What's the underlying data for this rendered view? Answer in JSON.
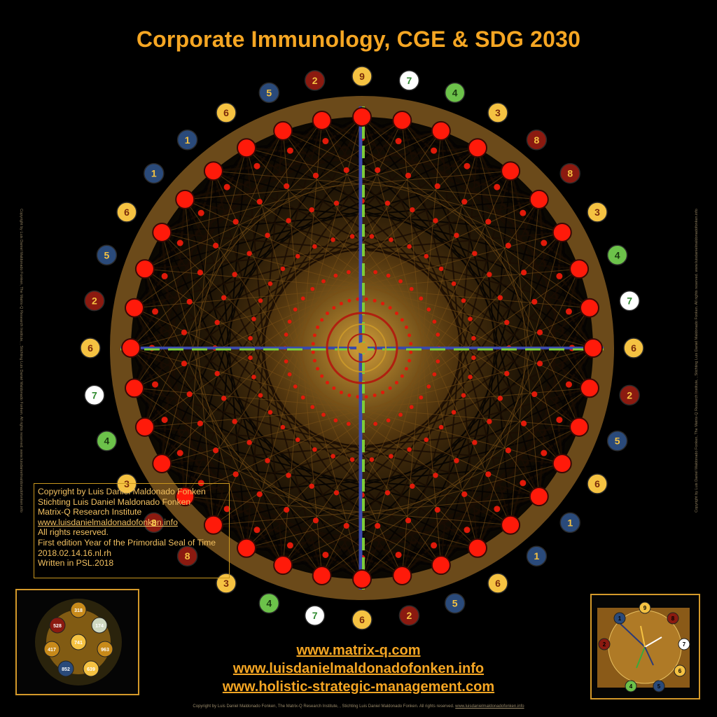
{
  "title": "Corporate Immunology, CGE & SDG 2030",
  "copyright_box": {
    "lines": [
      "Copyright by Luis Daniel Maldonado Fonken",
      "Stichting Luis Daniel Maldonado Fonken",
      "Matrix-Q Research Institute",
      "www.luisdanielmaldonadofonken.info",
      "All rights reserved.",
      "First edition Year of the Primordial Seal of Time",
      "2018.02.14.16.nl.rh",
      "Written in PSL.2018"
    ]
  },
  "links": [
    "www.matrix-q.com",
    "www.luisdanielmaldonadofonken.info",
    "www.holistic-strategic-management.com"
  ],
  "footer": {
    "text": "Copyright by Luis Daniel Maldonado Fonken, The Matrix-Q Research Institute, , Stichting Luis Daniel Maldonado Fonken. All rights reserved. ",
    "link": "www.luisdanielmaldonadofonken.info"
  },
  "side_text": {
    "left": "Copyright by Luis Daniel Maldonado Fonken, The Matrix-Q Research Institute, , Stichting Luis Daniel Maldonado Fonken. All rights reserved. www.luisdanielmaldonadofonken.info",
    "right": "Copyright by Luis Daniel Maldonado Fonken, The Matrix-Q Research Institute, , Stichting Luis Daniel Maldonado Fonken. All rights reserved. www.luisdanielmaldonadofonken.info"
  },
  "outer_ring_badges": [
    {
      "label": "9",
      "fill": "#f5c242",
      "text": "#7a2a0a"
    },
    {
      "label": "7",
      "fill": "#ffffff",
      "text": "#2f8a2f"
    },
    {
      "label": "4",
      "fill": "#6cc24a",
      "text": "#1a3a10"
    },
    {
      "label": "3",
      "fill": "#f5c242",
      "text": "#7a2a0a"
    },
    {
      "label": "8",
      "fill": "#8b1a10",
      "text": "#f5c242"
    },
    {
      "label": "8",
      "fill": "#8b1a10",
      "text": "#f5c242"
    },
    {
      "label": "3",
      "fill": "#f5c242",
      "text": "#7a2a0a"
    },
    {
      "label": "4",
      "fill": "#6cc24a",
      "text": "#1a3a10"
    },
    {
      "label": "7",
      "fill": "#ffffff",
      "text": "#2f8a2f"
    },
    {
      "label": "6",
      "fill": "#f5c242",
      "text": "#7a2a0a"
    },
    {
      "label": "2",
      "fill": "#8b1a10",
      "text": "#f5c242"
    },
    {
      "label": "5",
      "fill": "#2a4a7a",
      "text": "#f5c242"
    },
    {
      "label": "6",
      "fill": "#f5c242",
      "text": "#7a2a0a"
    },
    {
      "label": "1",
      "fill": "#2a4a7a",
      "text": "#f5c242"
    },
    {
      "label": "1",
      "fill": "#2a4a7a",
      "text": "#f5c242"
    },
    {
      "label": "6",
      "fill": "#f5c242",
      "text": "#7a2a0a"
    },
    {
      "label": "5",
      "fill": "#2a4a7a",
      "text": "#f5c242"
    },
    {
      "label": "2",
      "fill": "#8b1a10",
      "text": "#f5c242"
    },
    {
      "label": "6",
      "fill": "#f5c242",
      "text": "#7a2a0a"
    },
    {
      "label": "7",
      "fill": "#ffffff",
      "text": "#2f8a2f"
    },
    {
      "label": "4",
      "fill": "#6cc24a",
      "text": "#1a3a10"
    },
    {
      "label": "3",
      "fill": "#f5c242",
      "text": "#7a2a0a"
    },
    {
      "label": "8",
      "fill": "#8b1a10",
      "text": "#f5c242"
    },
    {
      "label": "8",
      "fill": "#8b1a10",
      "text": "#f5c242"
    },
    {
      "label": "3",
      "fill": "#f5c242",
      "text": "#7a2a0a"
    },
    {
      "label": "4",
      "fill": "#6cc24a",
      "text": "#1a3a10"
    },
    {
      "label": "7",
      "fill": "#ffffff",
      "text": "#2f8a2f"
    },
    {
      "label": "6",
      "fill": "#f5c242",
      "text": "#7a2a0a"
    },
    {
      "label": "2",
      "fill": "#8b1a10",
      "text": "#f5c242"
    },
    {
      "label": "5",
      "fill": "#2a4a7a",
      "text": "#f5c242"
    },
    {
      "label": "6",
      "fill": "#f5c242",
      "text": "#7a2a0a"
    },
    {
      "label": "1",
      "fill": "#2a4a7a",
      "text": "#f5c242"
    },
    {
      "label": "1",
      "fill": "#2a4a7a",
      "text": "#f5c242"
    },
    {
      "label": "6",
      "fill": "#f5c242",
      "text": "#7a2a0a"
    },
    {
      "label": "5",
      "fill": "#2a4a7a",
      "text": "#f5c242"
    },
    {
      "label": "2",
      "fill": "#8b1a10",
      "text": "#f5c242"
    }
  ],
  "inset_left": {
    "labels": [
      "318",
      "528",
      "174",
      "417",
      "963",
      "852",
      "639",
      "741"
    ]
  },
  "inset_right": {
    "labels": [
      "9",
      "8",
      "7",
      "6",
      "5",
      "4",
      "2",
      "1"
    ]
  },
  "colors": {
    "accent": "#f5a623",
    "ring": "#6b4a1a",
    "node": "#ff1a0a",
    "axis_green": "#7ccc3a",
    "axis_blue": "#3a4aaa"
  }
}
